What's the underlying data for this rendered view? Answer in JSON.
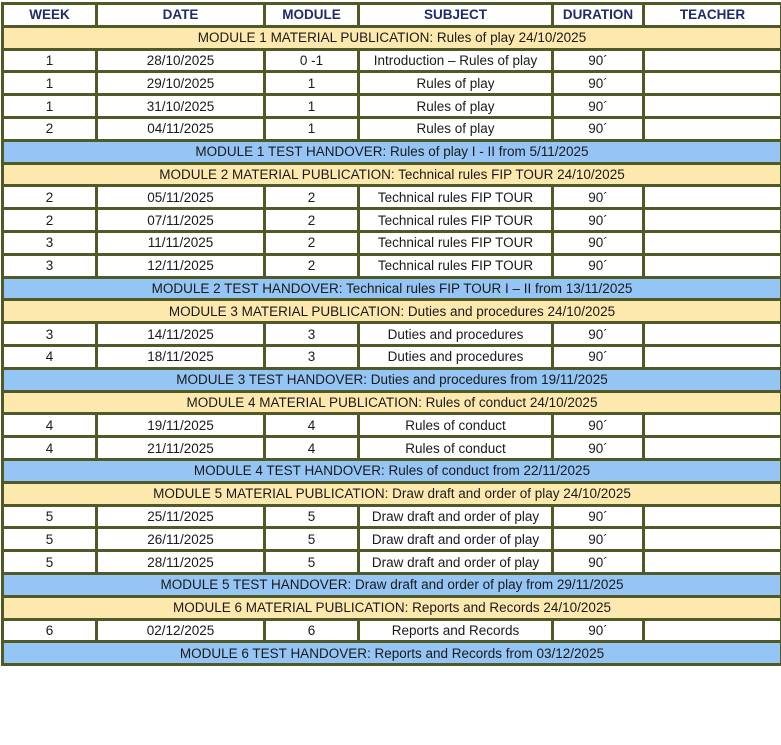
{
  "headers": [
    "WEEK",
    "DATE",
    "MODULE",
    "SUBJECT",
    "DURATION",
    "TEACHER"
  ],
  "rows": [
    {
      "type": "pub",
      "text": "MODULE 1 MATERIAL PUBLICATION: Rules of play 24/10/2025"
    },
    {
      "type": "data",
      "week": "1",
      "date": "28/10/2025",
      "module": "0 -1",
      "subject": "Introduction – Rules of play",
      "duration": "90´",
      "teacher": ""
    },
    {
      "type": "data",
      "week": "1",
      "date": "29/10/2025",
      "module": "1",
      "subject": "Rules of play",
      "duration": "90´",
      "teacher": ""
    },
    {
      "type": "data",
      "week": "1",
      "date": "31/10/2025",
      "module": "1",
      "subject": "Rules of play",
      "duration": "90´",
      "teacher": ""
    },
    {
      "type": "data",
      "week": "2",
      "date": "04/11/2025",
      "module": "1",
      "subject": "Rules of play",
      "duration": "90´",
      "teacher": ""
    },
    {
      "type": "test",
      "text": "MODULE 1 TEST HANDOVER: Rules of play I - II from 5/11/2025"
    },
    {
      "type": "pub",
      "text": "MODULE 2 MATERIAL PUBLICATION: Technical rules FIP TOUR 24/10/2025"
    },
    {
      "type": "data",
      "week": "2",
      "date": "05/11/2025",
      "module": "2",
      "subject": "Technical rules FIP TOUR",
      "duration": "90´",
      "teacher": ""
    },
    {
      "type": "data",
      "week": "2",
      "date": "07/11/2025",
      "module": "2",
      "subject": "Technical rules FIP TOUR",
      "duration": "90´",
      "teacher": ""
    },
    {
      "type": "data",
      "week": "3",
      "date": "11/11/2025",
      "module": "2",
      "subject": "Technical rules FIP TOUR",
      "duration": "90´",
      "teacher": ""
    },
    {
      "type": "data",
      "week": "3",
      "date": "12/11/2025",
      "module": "2",
      "subject": "Technical rules FIP TOUR",
      "duration": "90´",
      "teacher": ""
    },
    {
      "type": "test",
      "text": "MODULE 2 TEST HANDOVER: Technical rules FIP TOUR I – II from 13/11/2025"
    },
    {
      "type": "pub",
      "text": "MODULE 3 MATERIAL PUBLICATION: Duties and procedures 24/10/2025"
    },
    {
      "type": "data",
      "week": "3",
      "date": "14/11/2025",
      "module": "3",
      "subject": "Duties and procedures",
      "duration": "90´",
      "teacher": ""
    },
    {
      "type": "data",
      "week": "4",
      "date": "18/11/2025",
      "module": "3",
      "subject": "Duties and procedures",
      "duration": "90´",
      "teacher": ""
    },
    {
      "type": "test",
      "text": "MODULE 3 TEST HANDOVER: Duties and procedures from 19/11/2025"
    },
    {
      "type": "pub",
      "text": "MODULE 4 MATERIAL PUBLICATION: Rules of conduct 24/10/2025"
    },
    {
      "type": "data",
      "week": "4",
      "date": "19/11/2025",
      "module": "4",
      "subject": "Rules of conduct",
      "duration": "90´",
      "teacher": ""
    },
    {
      "type": "data",
      "week": "4",
      "date": "21/11/2025",
      "module": "4",
      "subject": "Rules of conduct",
      "duration": "90´",
      "teacher": ""
    },
    {
      "type": "test",
      "text": "MODULE 4 TEST HANDOVER: Rules of conduct from 22/11/2025"
    },
    {
      "type": "pub",
      "text": "MODULE 5 MATERIAL PUBLICATION: Draw draft and order of play 24/10/2025"
    },
    {
      "type": "data",
      "week": "5",
      "date": "25/11/2025",
      "module": "5",
      "subject": "Draw draft and order of play",
      "duration": "90´",
      "teacher": ""
    },
    {
      "type": "data",
      "week": "5",
      "date": "26/11/2025",
      "module": "5",
      "subject": "Draw draft and order of play",
      "duration": "90´",
      "teacher": ""
    },
    {
      "type": "data",
      "week": "5",
      "date": "28/11/2025",
      "module": "5",
      "subject": "Draw draft and order of play",
      "duration": "90´",
      "teacher": ""
    },
    {
      "type": "test",
      "text": "MODULE 5 TEST HANDOVER: Draw draft and order of play from 29/11/2025"
    },
    {
      "type": "pub",
      "text": "MODULE 6 MATERIAL PUBLICATION: Reports and Records 24/10/2025"
    },
    {
      "type": "data",
      "week": "6",
      "date": "02/12/2025",
      "module": "6",
      "subject": "Reports and Records",
      "duration": "90´",
      "teacher": ""
    },
    {
      "type": "test",
      "text": "MODULE 6 TEST HANDOVER: Reports and Records from 03/12/2025"
    }
  ]
}
